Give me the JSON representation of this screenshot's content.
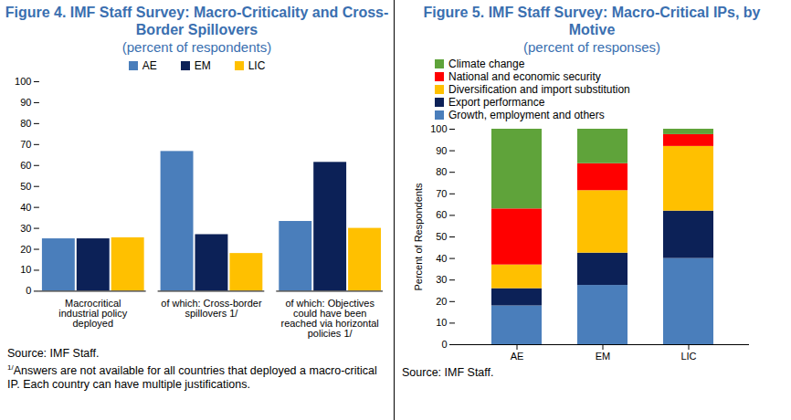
{
  "chart_data": [
    {
      "type": "bar",
      "title": "Figure 4. IMF Staff Survey: Macro-Criticality and Cross-Border Spillovers",
      "subtitle": "(percent of respondents)",
      "categories": [
        "Macrocritical industrial policy deployed",
        "of which: Cross-border spillovers 1/",
        "of which: Objectives could have been reached via horizontal policies 1/"
      ],
      "series": [
        {
          "name": "AE",
          "color": "#4a7ebb",
          "values": [
            25,
            66.7,
            33.3
          ]
        },
        {
          "name": "EM",
          "color": "#0c2157",
          "values": [
            25,
            27,
            61.5
          ]
        },
        {
          "name": "LIC",
          "color": "#ffc000",
          "values": [
            25.5,
            18,
            30
          ]
        }
      ],
      "ylim": [
        0,
        100
      ],
      "yticks": [
        0,
        10,
        20,
        30,
        40,
        50,
        60,
        70,
        80,
        90,
        100
      ],
      "grid": false,
      "legend": "top",
      "source": "Source: IMF Staff.",
      "note": {
        "marker": "1/",
        "text": "Answers are not available for all countries that deployed a macro-critical IP. Each country can have multiple justifications."
      }
    },
    {
      "type": "bar",
      "stacked": true,
      "title": "Figure 5. IMF Staff Survey: Macro-Critical IPs, by Motive",
      "subtitle": "(percent of responses)",
      "ylabel": "Percent of Respondents",
      "categories": [
        "AE",
        "EM",
        "LIC"
      ],
      "series": [
        {
          "name": "Growth, employment and others",
          "color": "#4a7ebb",
          "values": [
            18,
            27.5,
            40
          ]
        },
        {
          "name": "Export performance",
          "color": "#0c2157",
          "values": [
            8,
            15,
            22
          ]
        },
        {
          "name": "Diversification and import substitution",
          "color": "#ffc000",
          "values": [
            11,
            29,
            30
          ]
        },
        {
          "name": "National and economic security",
          "color": "#ff0000",
          "values": [
            26,
            12.5,
            5.5
          ]
        },
        {
          "name": "Climate change",
          "color": "#5fa33a",
          "values": [
            37,
            16,
            2.5
          ]
        }
      ],
      "ylim": [
        0,
        100
      ],
      "yticks": [
        0,
        10,
        20,
        30,
        40,
        50,
        60,
        70,
        80,
        90,
        100
      ],
      "grid": false,
      "legend": "top-left",
      "source": "Source: IMF Staff."
    }
  ]
}
